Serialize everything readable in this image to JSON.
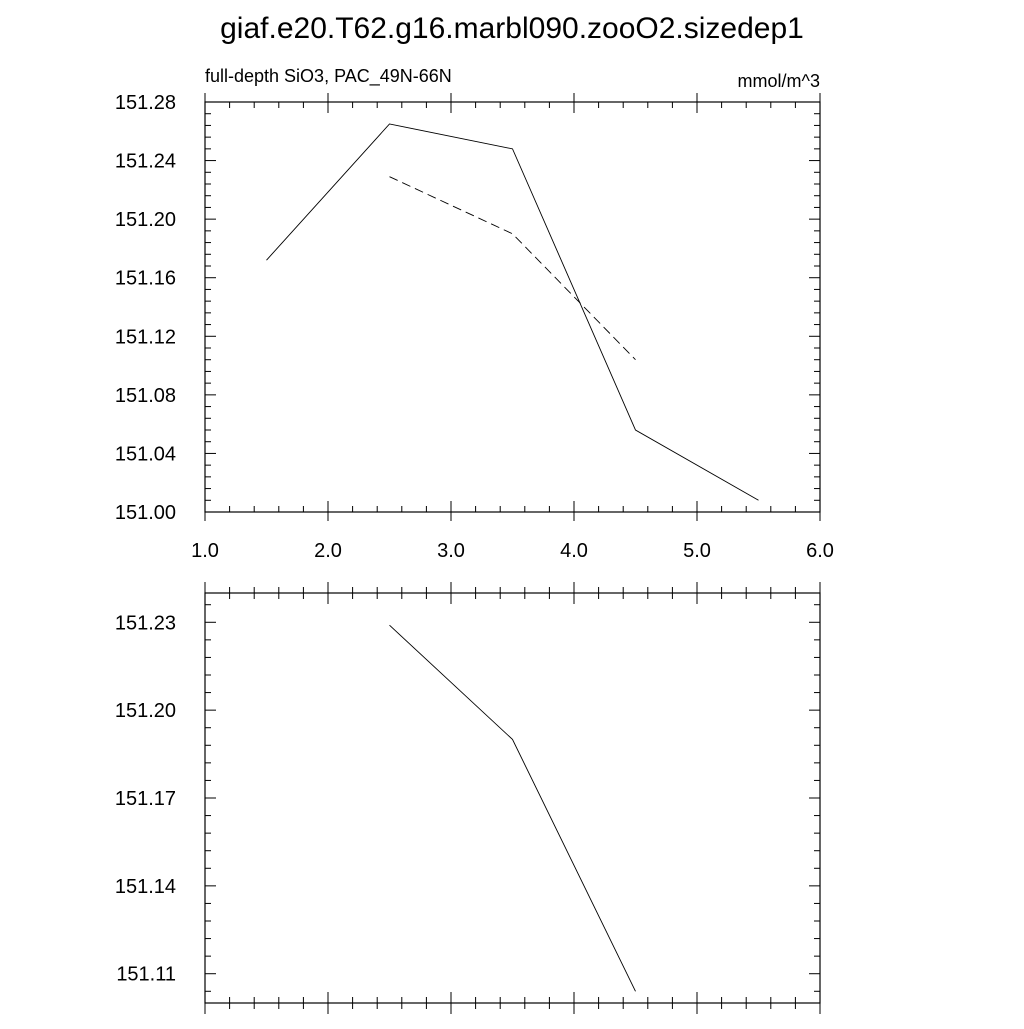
{
  "title": "giaf.e20.T62.g16.marbl090.zooO2.sizedep1",
  "chart_data": [
    {
      "type": "line",
      "subtitle_left": "full-depth SiO3, PAC_49N-66N",
      "subtitle_right": "mmol/m^3",
      "xlim": [
        1.0,
        6.0
      ],
      "ylim": [
        151.0,
        151.28
      ],
      "x_ticks": [
        1.0,
        2.0,
        3.0,
        4.0,
        5.0,
        6.0
      ],
      "x_tick_labels": [
        "1.0",
        "2.0",
        "3.0",
        "4.0",
        "5.0",
        "6.0"
      ],
      "y_ticks": [
        151.0,
        151.04,
        151.08,
        151.12,
        151.16,
        151.2,
        151.24,
        151.28
      ],
      "y_tick_labels": [
        "151.00",
        "151.04",
        "151.08",
        "151.12",
        "151.16",
        "151.20",
        "151.24",
        "151.28"
      ],
      "grid": false,
      "series": [
        {
          "style": "solid",
          "x": [
            1.5,
            2.5,
            3.5,
            4.5,
            5.5
          ],
          "y": [
            151.172,
            151.265,
            151.248,
            151.056,
            151.008
          ]
        },
        {
          "style": "dashed",
          "x": [
            2.5,
            3.5,
            4.5
          ],
          "y": [
            151.229,
            151.19,
            151.104
          ]
        }
      ]
    },
    {
      "type": "line",
      "xlim": [
        1.0,
        6.0
      ],
      "ylim": [
        151.1,
        151.24
      ],
      "x_ticks": [
        1.0,
        2.0,
        3.0,
        4.0,
        5.0,
        6.0
      ],
      "y_ticks": [
        151.11,
        151.14,
        151.17,
        151.2,
        151.23
      ],
      "y_tick_labels": [
        "151.11",
        "151.14",
        "151.17",
        "151.20",
        "151.23"
      ],
      "grid": false,
      "series": [
        {
          "style": "solid",
          "x": [
            2.5,
            3.5,
            4.5
          ],
          "y": [
            151.229,
            151.19,
            151.104
          ]
        }
      ]
    }
  ]
}
